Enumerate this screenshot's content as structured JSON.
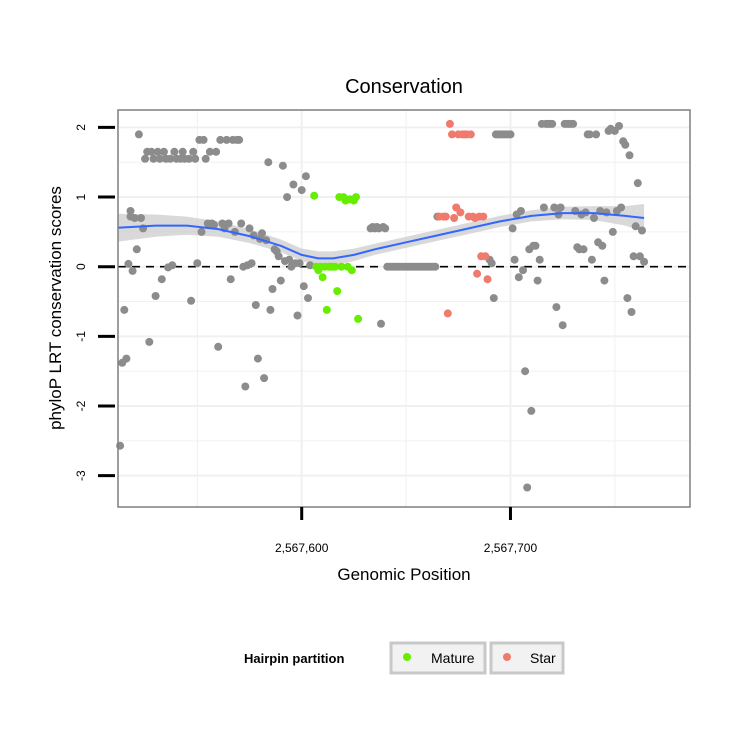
{
  "chart_data": {
    "type": "scatter",
    "title": "Conservation",
    "xlabel": "Genomic Position",
    "ylabel": "phyloP LRT conservation scores",
    "xlim": [
      2567512,
      2567786
    ],
    "ylim": [
      -3.45,
      2.25
    ],
    "x_ticks": [
      {
        "value": 2567600,
        "label": "2,567,600"
      },
      {
        "value": 2567700,
        "label": "2,567,700"
      }
    ],
    "y_ticks": [
      {
        "value": 2,
        "label": "2"
      },
      {
        "value": 1,
        "label": "1"
      },
      {
        "value": 0,
        "label": "0"
      },
      {
        "value": -1,
        "label": "-1"
      },
      {
        "value": -2,
        "label": "-2"
      },
      {
        "value": -3,
        "label": "-3"
      }
    ],
    "reference_line": {
      "y": 0,
      "style": "dashed"
    },
    "legend": {
      "title": "Hairpin partition",
      "position": "bottom",
      "entries": [
        {
          "label": "Mature",
          "color": "#66ee00"
        },
        {
          "label": "Star",
          "color": "#f07a6c"
        }
      ]
    },
    "other_color": "#8c8c8c",
    "smooth_color": "#3366ff",
    "band_color": "#cccccc",
    "series": [
      {
        "name": "Other",
        "color": "#8c8c8c",
        "points": [
          [
            2567513,
            -2.57
          ],
          [
            2567514,
            -1.38
          ],
          [
            2567515,
            -0.62
          ],
          [
            2567516,
            -1.32
          ],
          [
            2567517,
            0.04
          ],
          [
            2567518,
            0.72
          ],
          [
            2567518,
            0.8
          ],
          [
            2567519,
            -0.06
          ],
          [
            2567520,
            0.7
          ],
          [
            2567521,
            0.25
          ],
          [
            2567522,
            1.9
          ],
          [
            2567523,
            0.7
          ],
          [
            2567524,
            0.55
          ],
          [
            2567525,
            1.55
          ],
          [
            2567526,
            1.65
          ],
          [
            2567527,
            -1.08
          ],
          [
            2567528,
            1.65
          ],
          [
            2567529,
            1.55
          ],
          [
            2567530,
            -0.42
          ],
          [
            2567531,
            1.65
          ],
          [
            2567532,
            1.55
          ],
          [
            2567533,
            -0.18
          ],
          [
            2567534,
            1.65
          ],
          [
            2567535,
            1.55
          ],
          [
            2567536,
            -0.01
          ],
          [
            2567537,
            1.55
          ],
          [
            2567538,
            0.02
          ],
          [
            2567539,
            1.65
          ],
          [
            2567540,
            1.55
          ],
          [
            2567542,
            1.55
          ],
          [
            2567543,
            1.65
          ],
          [
            2567544,
            1.55
          ],
          [
            2567546,
            1.55
          ],
          [
            2567547,
            -0.49
          ],
          [
            2567548,
            1.65
          ],
          [
            2567549,
            1.55
          ],
          [
            2567550,
            0.05
          ],
          [
            2567551,
            1.82
          ],
          [
            2567552,
            0.5
          ],
          [
            2567553,
            1.82
          ],
          [
            2567554,
            1.55
          ],
          [
            2567555,
            0.62
          ],
          [
            2567556,
            1.65
          ],
          [
            2567557,
            0.62
          ],
          [
            2567558,
            0.6
          ],
          [
            2567559,
            1.65
          ],
          [
            2567560,
            -1.15
          ],
          [
            2567561,
            1.82
          ],
          [
            2567562,
            0.62
          ],
          [
            2567563,
            0.55
          ],
          [
            2567564,
            1.82
          ],
          [
            2567565,
            0.62
          ],
          [
            2567566,
            -0.18
          ],
          [
            2567567,
            1.82
          ],
          [
            2567568,
            0.5
          ],
          [
            2567569,
            1.82
          ],
          [
            2567570,
            1.82
          ],
          [
            2567571,
            0.62
          ],
          [
            2567572,
            0.0
          ],
          [
            2567573,
            -1.72
          ],
          [
            2567574,
            0.02
          ],
          [
            2567575,
            0.55
          ],
          [
            2567576,
            0.05
          ],
          [
            2567577,
            0.45
          ],
          [
            2567578,
            -0.55
          ],
          [
            2567579,
            -1.32
          ],
          [
            2567580,
            0.4
          ],
          [
            2567581,
            0.48
          ],
          [
            2567582,
            -1.6
          ],
          [
            2567583,
            0.38
          ],
          [
            2567584,
            1.5
          ],
          [
            2567585,
            -0.62
          ],
          [
            2567586,
            -0.32
          ],
          [
            2567587,
            0.25
          ],
          [
            2567588,
            0.22
          ],
          [
            2567589,
            0.15
          ],
          [
            2567590,
            -0.2
          ],
          [
            2567591,
            1.45
          ],
          [
            2567592,
            0.08
          ],
          [
            2567593,
            1.0
          ],
          [
            2567594,
            0.1
          ],
          [
            2567595,
            0.0
          ],
          [
            2567596,
            1.18
          ],
          [
            2567597,
            0.05
          ],
          [
            2567598,
            -0.7
          ],
          [
            2567599,
            0.05
          ],
          [
            2567600,
            1.1
          ],
          [
            2567601,
            -0.28
          ],
          [
            2567602,
            1.3
          ],
          [
            2567603,
            -0.45
          ],
          [
            2567604,
            0.02
          ],
          [
            2567633,
            0.55
          ],
          [
            2567634,
            0.57
          ],
          [
            2567635,
            0.55
          ],
          [
            2567636,
            0.57
          ],
          [
            2567637,
            0.55
          ],
          [
            2567638,
            -0.82
          ],
          [
            2567639,
            0.57
          ],
          [
            2567640,
            0.55
          ],
          [
            2567641,
            0.0
          ],
          [
            2567642,
            0.0
          ],
          [
            2567643,
            0.0
          ],
          [
            2567644,
            0.0
          ],
          [
            2567645,
            0.0
          ],
          [
            2567646,
            0.0
          ],
          [
            2567647,
            0.0
          ],
          [
            2567648,
            0.0
          ],
          [
            2567649,
            0.0
          ],
          [
            2567650,
            0.0
          ],
          [
            2567651,
            0.0
          ],
          [
            2567652,
            0.0
          ],
          [
            2567653,
            0.0
          ],
          [
            2567654,
            0.0
          ],
          [
            2567655,
            0.0
          ],
          [
            2567656,
            0.0
          ],
          [
            2567657,
            0.0
          ],
          [
            2567658,
            0.0
          ],
          [
            2567659,
            0.0
          ],
          [
            2567660,
            0.0
          ],
          [
            2567661,
            0.0
          ],
          [
            2567662,
            0.0
          ],
          [
            2567663,
            0.0
          ],
          [
            2567664,
            0.0
          ],
          [
            2567665,
            0.72
          ],
          [
            2567690,
            0.1
          ],
          [
            2567691,
            0.05
          ],
          [
            2567692,
            -0.45
          ],
          [
            2567693,
            1.9
          ],
          [
            2567694,
            1.9
          ],
          [
            2567695,
            1.9
          ],
          [
            2567696,
            1.9
          ],
          [
            2567697,
            1.9
          ],
          [
            2567698,
            1.9
          ],
          [
            2567699,
            1.9
          ],
          [
            2567700,
            1.9
          ],
          [
            2567701,
            0.55
          ],
          [
            2567702,
            0.1
          ],
          [
            2567703,
            0.75
          ],
          [
            2567704,
            -0.15
          ],
          [
            2567705,
            0.8
          ],
          [
            2567706,
            -0.05
          ],
          [
            2567707,
            -1.5
          ],
          [
            2567708,
            -3.17
          ],
          [
            2567709,
            0.25
          ],
          [
            2567710,
            -2.07
          ],
          [
            2567711,
            0.3
          ],
          [
            2567712,
            0.3
          ],
          [
            2567713,
            -0.2
          ],
          [
            2567714,
            0.1
          ],
          [
            2567715,
            2.05
          ],
          [
            2567716,
            0.85
          ],
          [
            2567717,
            2.05
          ],
          [
            2567718,
            2.05
          ],
          [
            2567719,
            2.05
          ],
          [
            2567720,
            2.05
          ],
          [
            2567721,
            0.85
          ],
          [
            2567722,
            -0.58
          ],
          [
            2567723,
            0.75
          ],
          [
            2567724,
            0.85
          ],
          [
            2567725,
            -0.84
          ],
          [
            2567726,
            2.05
          ],
          [
            2567727,
            2.05
          ],
          [
            2567728,
            2.05
          ],
          [
            2567729,
            2.05
          ],
          [
            2567730,
            2.05
          ],
          [
            2567731,
            0.8
          ],
          [
            2567732,
            0.28
          ],
          [
            2567733,
            0.25
          ],
          [
            2567734,
            0.75
          ],
          [
            2567735,
            0.25
          ],
          [
            2567736,
            0.78
          ],
          [
            2567737,
            1.9
          ],
          [
            2567738,
            1.9
          ],
          [
            2567739,
            0.1
          ],
          [
            2567740,
            0.7
          ],
          [
            2567741,
            1.9
          ],
          [
            2567742,
            0.35
          ],
          [
            2567743,
            0.8
          ],
          [
            2567744,
            0.3
          ],
          [
            2567745,
            -0.2
          ],
          [
            2567746,
            0.78
          ],
          [
            2567747,
            1.95
          ],
          [
            2567748,
            1.98
          ],
          [
            2567749,
            0.5
          ],
          [
            2567750,
            1.95
          ],
          [
            2567751,
            0.8
          ],
          [
            2567752,
            2.02
          ],
          [
            2567753,
            0.85
          ],
          [
            2567754,
            1.8
          ],
          [
            2567755,
            1.75
          ],
          [
            2567756,
            -0.45
          ],
          [
            2567757,
            1.6
          ],
          [
            2567758,
            -0.65
          ],
          [
            2567759,
            0.15
          ],
          [
            2567760,
            0.58
          ],
          [
            2567761,
            1.2
          ],
          [
            2567762,
            0.15
          ],
          [
            2567763,
            0.52
          ],
          [
            2567764,
            0.07
          ]
        ]
      },
      {
        "name": "Mature",
        "color": "#66ee00",
        "points": [
          [
            2567606,
            1.02
          ],
          [
            2567607,
            0.0
          ],
          [
            2567608,
            -0.05
          ],
          [
            2567609,
            0.0
          ],
          [
            2567610,
            -0.15
          ],
          [
            2567611,
            0.0
          ],
          [
            2567612,
            -0.62
          ],
          [
            2567613,
            0.0
          ],
          [
            2567614,
            0.0
          ],
          [
            2567615,
            0.0
          ],
          [
            2567616,
            0.0
          ],
          [
            2567617,
            -0.35
          ],
          [
            2567618,
            1.0
          ],
          [
            2567619,
            0.0
          ],
          [
            2567620,
            1.0
          ],
          [
            2567621,
            0.95
          ],
          [
            2567622,
            0.0
          ],
          [
            2567623,
            0.97
          ],
          [
            2567624,
            -0.05
          ],
          [
            2567625,
            0.95
          ],
          [
            2567626,
            1.0
          ],
          [
            2567627,
            -0.75
          ]
        ]
      },
      {
        "name": "Star",
        "color": "#f07a6c",
        "points": [
          [
            2567666,
            0.72
          ],
          [
            2567668,
            0.72
          ],
          [
            2567669,
            0.72
          ],
          [
            2567670,
            -0.67
          ],
          [
            2567671,
            2.05
          ],
          [
            2567672,
            1.9
          ],
          [
            2567673,
            0.7
          ],
          [
            2567674,
            0.85
          ],
          [
            2567675,
            1.9
          ],
          [
            2567676,
            0.78
          ],
          [
            2567677,
            1.9
          ],
          [
            2567678,
            1.9
          ],
          [
            2567679,
            1.9
          ],
          [
            2567680,
            0.72
          ],
          [
            2567681,
            1.9
          ],
          [
            2567682,
            0.72
          ],
          [
            2567683,
            0.7
          ],
          [
            2567684,
            -0.1
          ],
          [
            2567685,
            0.72
          ],
          [
            2567686,
            0.15
          ],
          [
            2567687,
            0.72
          ],
          [
            2567688,
            0.15
          ],
          [
            2567689,
            -0.18
          ]
        ]
      }
    ],
    "smooth": [
      [
        2567512,
        0.56
      ],
      [
        2567530,
        0.59
      ],
      [
        2567545,
        0.59
      ],
      [
        2567560,
        0.54
      ],
      [
        2567575,
        0.44
      ],
      [
        2567590,
        0.3
      ],
      [
        2567600,
        0.17
      ],
      [
        2567608,
        0.12
      ],
      [
        2567615,
        0.12
      ],
      [
        2567625,
        0.17
      ],
      [
        2567635,
        0.25
      ],
      [
        2567650,
        0.35
      ],
      [
        2567665,
        0.45
      ],
      [
        2567680,
        0.55
      ],
      [
        2567695,
        0.65
      ],
      [
        2567710,
        0.73
      ],
      [
        2567725,
        0.77
      ],
      [
        2567740,
        0.77
      ],
      [
        2567755,
        0.73
      ],
      [
        2567764,
        0.7
      ]
    ],
    "smooth_band_halfwidth": [
      0.2,
      0.16,
      0.13,
      0.11,
      0.1,
      0.09,
      0.09,
      0.1,
      0.1,
      0.09,
      0.08,
      0.08,
      0.08,
      0.08,
      0.08,
      0.08,
      0.09,
      0.1,
      0.14,
      0.2
    ]
  }
}
